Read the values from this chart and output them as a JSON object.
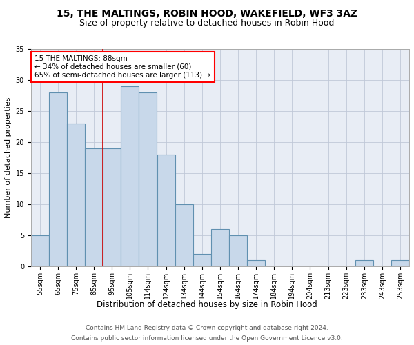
{
  "title1": "15, THE MALTINGS, ROBIN HOOD, WAKEFIELD, WF3 3AZ",
  "title2": "Size of property relative to detached houses in Robin Hood",
  "xlabel": "Distribution of detached houses by size in Robin Hood",
  "ylabel": "Number of detached properties",
  "categories": [
    "55sqm",
    "65sqm",
    "75sqm",
    "85sqm",
    "95sqm",
    "105sqm",
    "114sqm",
    "124sqm",
    "134sqm",
    "144sqm",
    "154sqm",
    "164sqm",
    "174sqm",
    "184sqm",
    "194sqm",
    "204sqm",
    "213sqm",
    "223sqm",
    "233sqm",
    "243sqm",
    "253sqm"
  ],
  "values": [
    5,
    28,
    23,
    19,
    19,
    29,
    28,
    18,
    10,
    2,
    6,
    5,
    1,
    0,
    0,
    0,
    0,
    0,
    1,
    0,
    1
  ],
  "bar_color": "#c8d8ea",
  "bar_edgecolor": "#6090b0",
  "redline_x": 3.5,
  "annotation_text": "15 THE MALTINGS: 88sqm\n← 34% of detached houses are smaller (60)\n65% of semi-detached houses are larger (113) →",
  "annotation_box_color": "white",
  "annotation_box_edgecolor": "red",
  "redline_color": "#cc0000",
  "ylim": [
    0,
    35
  ],
  "yticks": [
    0,
    5,
    10,
    15,
    20,
    25,
    30,
    35
  ],
  "grid_color": "#c0c8d8",
  "background_color": "#e8edf5",
  "footer1": "Contains HM Land Registry data © Crown copyright and database right 2024.",
  "footer2": "Contains public sector information licensed under the Open Government Licence v3.0.",
  "title1_fontsize": 10,
  "title2_fontsize": 9,
  "xlabel_fontsize": 8.5,
  "ylabel_fontsize": 8,
  "tick_fontsize": 7,
  "annotation_fontsize": 7.5,
  "footer_fontsize": 6.5
}
